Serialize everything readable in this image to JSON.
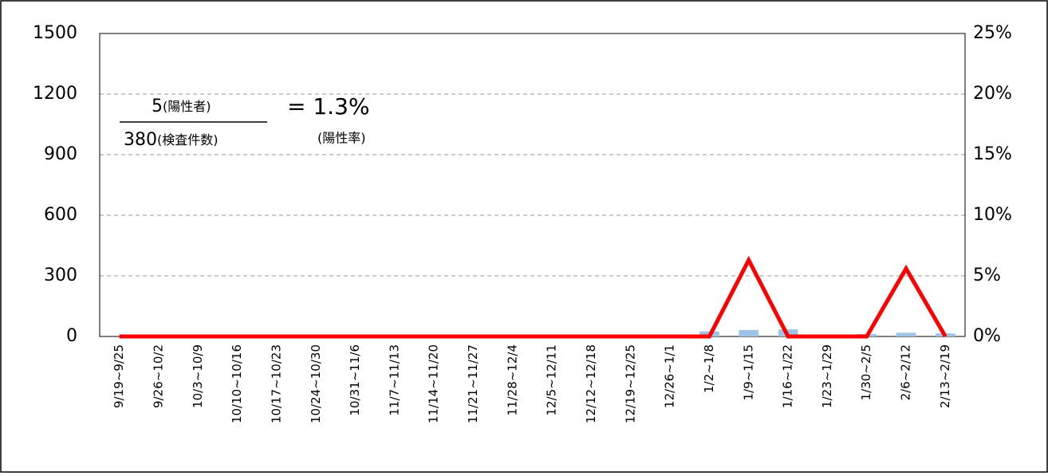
{
  "chart_data": {
    "type": "bar_line",
    "categories": [
      "9/19~9/25",
      "9/26~10/2",
      "10/3~10/9",
      "10/10~10/16",
      "10/17~10/23",
      "10/24~10/30",
      "10/31~11/6",
      "11/7~11/13",
      "11/14~11/20",
      "11/21~11/27",
      "11/28~12/4",
      "12/5~12/11",
      "12/12~12/18",
      "12/19~12/25",
      "12/26~1/1",
      "1/2~1/8",
      "1/9~1/15",
      "1/16~1/22",
      "1/23~1/29",
      "1/30~2/5",
      "2/6~2/12",
      "2/13~2/19"
    ],
    "series": [
      {
        "type": "bar",
        "color": "#9dc3e6",
        "values": [
          0,
          0,
          0,
          0,
          0,
          0,
          0,
          1,
          2,
          1,
          2,
          1,
          1,
          3,
          10,
          25,
          32,
          35,
          3,
          12,
          18,
          15
        ]
      },
      {
        "type": "line",
        "color": "#ff0000",
        "axis": "y2",
        "values": [
          0,
          0,
          0,
          0,
          0,
          0,
          0,
          0,
          0,
          0,
          0,
          0,
          0,
          0,
          0,
          0,
          6.3,
          0,
          0,
          0,
          5.6,
          0
        ]
      }
    ],
    "ylim": [
      0,
      1500
    ],
    "yticks": [
      0,
      300,
      600,
      900,
      1200,
      1500
    ],
    "y2lim": [
      0,
      25
    ],
    "y2ticks": [
      {
        "value": 0,
        "label": "0%"
      },
      {
        "value": 5,
        "label": "5%"
      },
      {
        "value": 10,
        "label": "10%"
      },
      {
        "value": 15,
        "label": "15%"
      },
      {
        "value": 20,
        "label": "20%"
      },
      {
        "value": 25,
        "label": "25%"
      }
    ],
    "grid": true,
    "annotation": {
      "numerator": "5",
      "numerator_note": "(陽性者)",
      "denominator": "380",
      "denominator_note": "(検査件数)",
      "result": "= 1.3%",
      "result_note": "(陽性率)"
    }
  }
}
